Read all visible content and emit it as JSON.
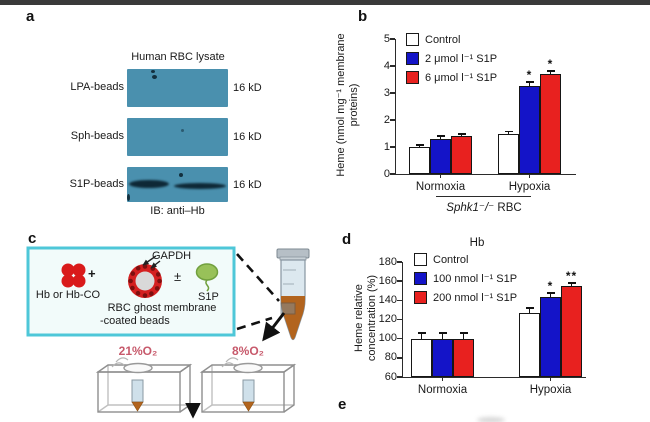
{
  "panel_labels": {
    "a": "a",
    "b": "b",
    "c": "c",
    "d": "d",
    "e": "e"
  },
  "panel_a": {
    "title": "Human RBC lysate",
    "rows": [
      {
        "label": "LPA-beads",
        "marker": "16 kD"
      },
      {
        "label": "Sph-beads",
        "marker": "16 kD"
      },
      {
        "label": "S1P-beads",
        "marker": "16 kD"
      }
    ],
    "caption": "IB: anti–Hb",
    "blot_color": "#4a90ae"
  },
  "chart_data": [
    {
      "type": "bar",
      "title": "",
      "ylabel": "Heme (nmol mg⁻¹ membrane proteins)",
      "categories": [
        "Normoxia",
        "Hypoxia"
      ],
      "series": [
        {
          "name": "Control",
          "color": "#ffffff",
          "values": [
            1.0,
            1.5
          ],
          "errors": [
            0.05,
            0.05
          ]
        },
        {
          "name": "2 μmol l⁻¹ S1P",
          "color": "#1414c8",
          "values": [
            1.3,
            3.25
          ],
          "errors": [
            0.08,
            0.12
          ]
        },
        {
          "name": "6 μmol l⁻¹ S1P",
          "color": "#e8211f",
          "values": [
            1.4,
            3.7
          ],
          "errors": [
            0.05,
            0.08
          ]
        }
      ],
      "significance": [
        [
          "",
          "",
          ""
        ],
        [
          "",
          "*",
          "*"
        ]
      ],
      "ylim": [
        0,
        5
      ],
      "yticks": [
        0,
        1,
        2,
        3,
        4,
        5
      ],
      "legend_position": "top-left",
      "group_annotation": "Sphk1⁻/⁻ RBC"
    },
    {
      "type": "bar",
      "title": "Hb",
      "ylabel": "Heme relative concentration (%)",
      "categories": [
        "Normoxia",
        "Hypoxia"
      ],
      "series": [
        {
          "name": "Control",
          "color": "#ffffff",
          "values": [
            100,
            127
          ],
          "errors": [
            5,
            4
          ]
        },
        {
          "name": "100 nmol l⁻¹ S1P",
          "color": "#1414c8",
          "values": [
            100,
            143
          ],
          "errors": [
            5,
            4
          ]
        },
        {
          "name": "200 nmol l⁻¹ S1P",
          "color": "#e8211f",
          "values": [
            100,
            155
          ],
          "errors": [
            5,
            2
          ]
        }
      ],
      "significance": [
        [
          "",
          "",
          ""
        ],
        [
          "",
          "*",
          "**"
        ]
      ],
      "ylim": [
        60,
        180
      ],
      "yticks": [
        60,
        80,
        100,
        120,
        140,
        160,
        180
      ],
      "legend_position": "top-left"
    }
  ],
  "panel_b": {
    "group_line_italic": "Sphk1⁻/⁻",
    "group_line_rest": " RBC"
  },
  "panel_c": {
    "hb_label": "Hb or Hb-CO",
    "plus": "+",
    "gapdh": "GAPDH",
    "plusminus": "±",
    "s1p": "S1P",
    "bead_line1": "RBC ghost membrane",
    "bead_line2": "-coated beads",
    "chamber1": "21%O₂",
    "chamber2": "8%O₂"
  },
  "colors": {
    "control": "#ffffff",
    "s1p_low": "#1414c8",
    "s1p_high": "#e8211f",
    "blot": "#4a90ae",
    "box_border": "#4ec7d8",
    "chamber_label": "#c7596b"
  }
}
